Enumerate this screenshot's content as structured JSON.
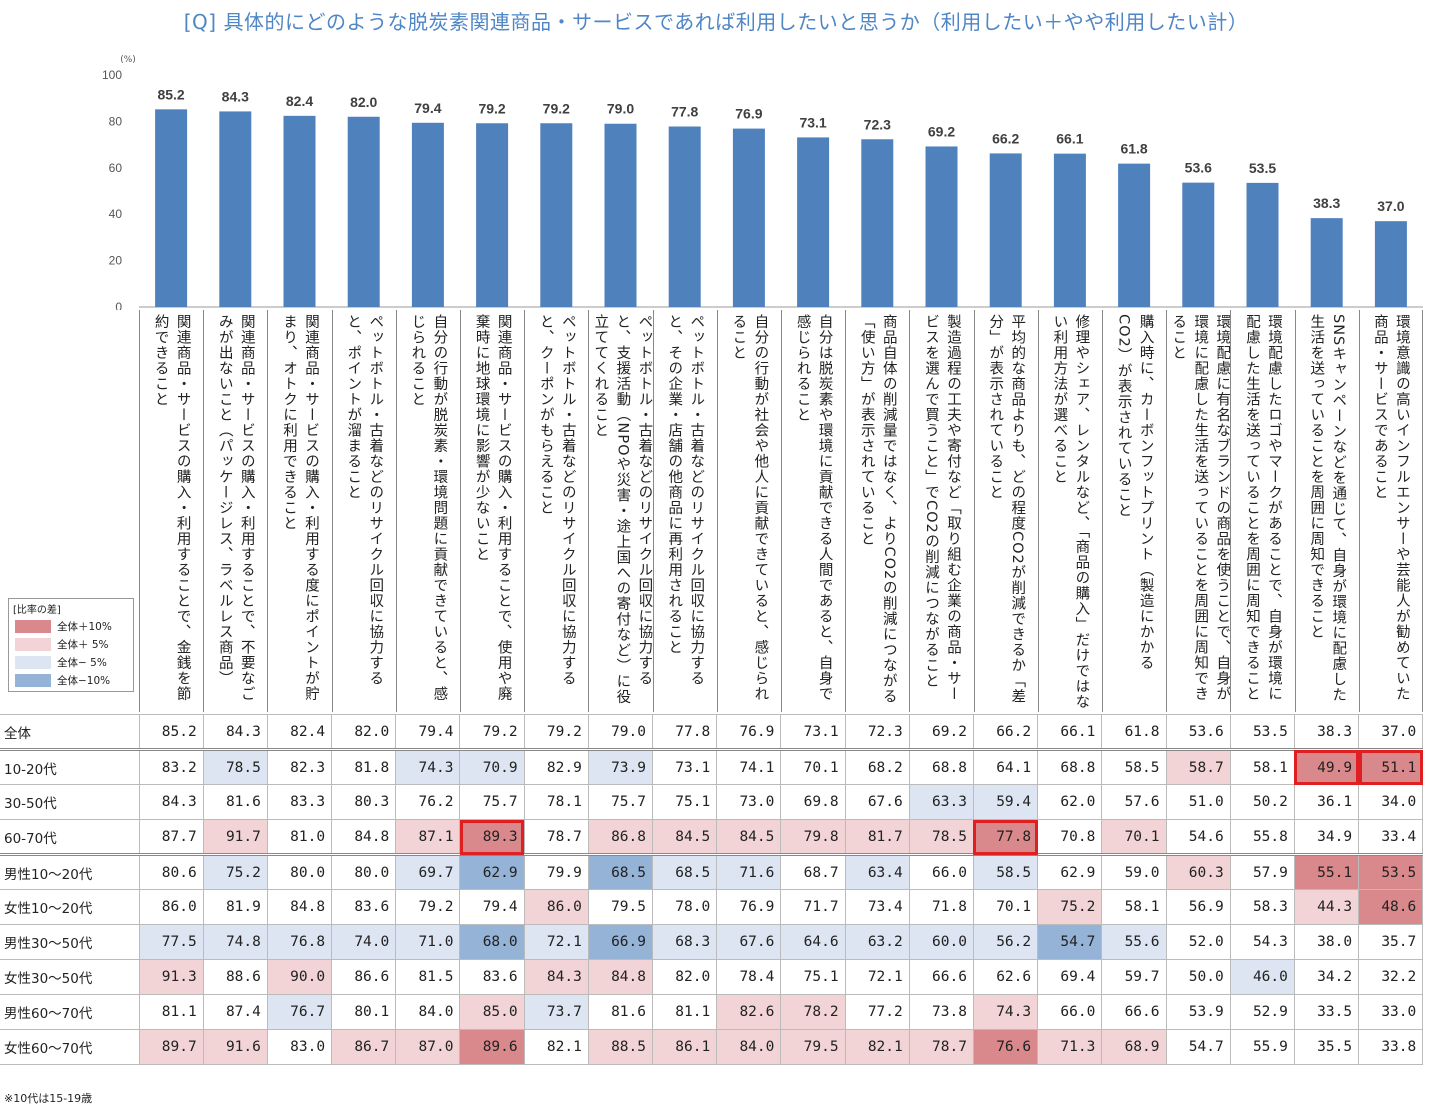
{
  "title": "[Q] 具体的にどのような脱炭素関連商品・サービスであれば利用したいと思うか（利用したい＋やや利用したい計）",
  "unit": "(%)",
  "footnote": "※10代は15-19歳",
  "legend": {
    "title": "[比率の差]",
    "items": [
      {
        "label": "全体＋10%",
        "color": "#d9888b"
      },
      {
        "label": "全体＋ 5%",
        "color": "#f2d4d6"
      },
      {
        "label": "全体− 5%",
        "color": "#dce5f1"
      },
      {
        "label": "全体−10%",
        "color": "#95b3d7"
      }
    ]
  },
  "colors": {
    "bar": "#4f81bd",
    "plus10": "#d9888b",
    "plus5": "#f2d4d6",
    "minus5": "#dce5f1",
    "minus10": "#95b3d7",
    "highlight": "#e02020"
  },
  "chart_data": {
    "type": "bar",
    "title": "[Q] 具体的にどのような脱炭素関連商品・サービスであれば利用したいと思うか（利用したい＋やや利用したい計）",
    "ylabel": "(%)",
    "ylim": [
      0,
      100
    ],
    "yticks": [
      "0",
      "20",
      "40",
      "60",
      "80",
      "100"
    ],
    "categories": [
      "関連商品・サービスの購入・利用することで、金銭を節約できること",
      "関連商品・サービスの購入・利用することで、不要なごみが出ないこと（パッケージレス、ラベルレス商品）",
      "関連商品・サービスの購入・利用する度にポイントが貯まり、オトクに利用できること",
      "ペットボトル・古着などのリサイクル回収に協力すると、ポイントが溜まること",
      "自分の行動が脱炭素・環境問題に貢献できていると、感じられること",
      "関連商品・サービスの購入・利用することで、使用や廃棄時に地球環境に影響が少ないこと",
      "ペットボトル・古着などのリサイクル回収に協力すると、クーポンがもらえること",
      "ペットボトル・古着などのリサイクル回収に協力すると、支援活動（NPOや災害・途上国への寄付など）に役立ててくれること",
      "ペットボトル・古着などのリサイクル回収に協力すると、その企業・店舗の他商品に再利用されること",
      "自分の行動が社会や他人に貢献できていると、感じられること",
      "自分は脱炭素や環境に貢献できる人間であると、自身で感じられること",
      "商品自体の削減量ではなく、よりCO2の削減につながる「使い方」が表示されていること",
      "製造過程の工夫や寄付など「取り組む企業の商品・サービスを選んで買うこと」でCO2の削減につながること",
      "平均的な商品よりも、どの程度CO2が削減できるか「差分」が表示されていること",
      "修理やシェア、レンタルなど、「商品の購入」だけではない利用方法が選べること",
      "購入時に、カーボンフットプリント（製造にかかるCO2）が表示されていること",
      "環境配慮に有名なブランドの商品を使うことで、自身が環境に配慮した生活を送っていることを周囲に周知できること",
      "環境配慮したロゴやマークがあることで、自身が環境に配慮した生活を送っていることを周囲に周知できること",
      "SNSキャンペーンなどを通じて、自身が環境に配慮した生活を送っていることを周囲に周知できること",
      "環境意識の高いインフルエンサーや芸能人が勧めていた商品・サービスであること"
    ],
    "values": [
      85.2,
      84.3,
      82.4,
      82.0,
      79.4,
      79.2,
      79.2,
      79.0,
      77.8,
      76.9,
      73.1,
      72.3,
      69.2,
      66.2,
      66.1,
      61.8,
      53.6,
      53.5,
      38.3,
      37.0
    ],
    "value_labels": [
      "85.2",
      "84.3",
      "82.4",
      "82.0",
      "79.4",
      "79.2",
      "79.2",
      "79.0",
      "77.8",
      "76.9",
      "73.1",
      "72.3",
      "69.2",
      "66.2",
      "66.1",
      "61.8",
      "53.6",
      "53.5",
      "38.3",
      "37.0"
    ]
  },
  "table": {
    "rows": [
      {
        "label": "全体",
        "values": [
          "85.2",
          "84.3",
          "82.4",
          "82.0",
          "79.4",
          "79.2",
          "79.2",
          "79.0",
          "77.8",
          "76.9",
          "73.1",
          "72.3",
          "69.2",
          "66.2",
          "66.1",
          "61.8",
          "53.6",
          "53.5",
          "38.3",
          "37.0"
        ],
        "shade": [
          0,
          0,
          0,
          0,
          0,
          0,
          0,
          0,
          0,
          0,
          0,
          0,
          0,
          0,
          0,
          0,
          0,
          0,
          0,
          0
        ],
        "highlight": [],
        "sep": true
      },
      {
        "label": "10-20代",
        "values": [
          "83.2",
          "78.5",
          "82.3",
          "81.8",
          "74.3",
          "70.9",
          "82.9",
          "73.9",
          "73.1",
          "74.1",
          "70.1",
          "68.2",
          "68.8",
          "64.1",
          "68.8",
          "58.5",
          "58.7",
          "58.1",
          "49.9",
          "51.1"
        ],
        "shade": [
          0,
          -1,
          0,
          0,
          -1,
          -1,
          0,
          -1,
          0,
          0,
          0,
          0,
          0,
          0,
          0,
          0,
          1,
          0,
          2,
          2
        ],
        "highlight": [
          18,
          19
        ],
        "sep": false
      },
      {
        "label": "30-50代",
        "values": [
          "84.3",
          "81.6",
          "83.3",
          "80.3",
          "76.2",
          "75.7",
          "78.1",
          "75.7",
          "75.1",
          "73.0",
          "69.8",
          "67.6",
          "63.3",
          "59.4",
          "62.0",
          "57.6",
          "51.0",
          "50.2",
          "36.1",
          "34.0"
        ],
        "shade": [
          0,
          0,
          0,
          0,
          0,
          0,
          0,
          0,
          0,
          0,
          0,
          0,
          -1,
          -1,
          0,
          0,
          0,
          0,
          0,
          0
        ],
        "highlight": [],
        "sep": false
      },
      {
        "label": "60-70代",
        "values": [
          "87.7",
          "91.7",
          "81.0",
          "84.8",
          "87.1",
          "89.3",
          "78.7",
          "86.8",
          "84.5",
          "84.5",
          "79.8",
          "81.7",
          "78.5",
          "77.8",
          "70.8",
          "70.1",
          "54.6",
          "55.8",
          "34.9",
          "33.4"
        ],
        "shade": [
          0,
          1,
          0,
          0,
          1,
          2,
          0,
          1,
          1,
          1,
          1,
          1,
          1,
          2,
          0,
          1,
          0,
          0,
          0,
          0
        ],
        "highlight": [
          5,
          13
        ],
        "sep": true
      },
      {
        "label": "男性10～20代",
        "values": [
          "80.6",
          "75.2",
          "80.0",
          "80.0",
          "69.7",
          "62.9",
          "79.9",
          "68.5",
          "68.5",
          "71.6",
          "68.7",
          "63.4",
          "66.0",
          "58.5",
          "62.9",
          "59.0",
          "60.3",
          "57.9",
          "55.1",
          "53.5"
        ],
        "shade": [
          0,
          -1,
          0,
          0,
          -1,
          -2,
          0,
          -2,
          -1,
          -1,
          0,
          -1,
          0,
          -1,
          0,
          0,
          1,
          0,
          2,
          2
        ],
        "highlight": [],
        "sep": false
      },
      {
        "label": "女性10～20代",
        "values": [
          "86.0",
          "81.9",
          "84.8",
          "83.6",
          "79.2",
          "79.4",
          "86.0",
          "79.5",
          "78.0",
          "76.9",
          "71.7",
          "73.4",
          "71.8",
          "70.1",
          "75.2",
          "58.1",
          "56.9",
          "58.3",
          "44.3",
          "48.6"
        ],
        "shade": [
          0,
          0,
          0,
          0,
          0,
          0,
          1,
          0,
          0,
          0,
          0,
          0,
          0,
          0,
          1,
          0,
          0,
          0,
          1,
          2
        ],
        "highlight": [],
        "sep": false
      },
      {
        "label": "男性30～50代",
        "values": [
          "77.5",
          "74.8",
          "76.8",
          "74.0",
          "71.0",
          "68.0",
          "72.1",
          "66.9",
          "68.3",
          "67.6",
          "64.6",
          "63.2",
          "60.0",
          "56.2",
          "54.7",
          "55.6",
          "52.0",
          "54.3",
          "38.0",
          "35.7"
        ],
        "shade": [
          -1,
          -1,
          -1,
          -1,
          -1,
          -2,
          -1,
          -2,
          -1,
          -1,
          -1,
          -1,
          -1,
          -1,
          -2,
          -1,
          0,
          0,
          0,
          0
        ],
        "highlight": [],
        "sep": false
      },
      {
        "label": "女性30～50代",
        "values": [
          "91.3",
          "88.6",
          "90.0",
          "86.6",
          "81.5",
          "83.6",
          "84.3",
          "84.8",
          "82.0",
          "78.4",
          "75.1",
          "72.1",
          "66.6",
          "62.6",
          "69.4",
          "59.7",
          "50.0",
          "46.0",
          "34.2",
          "32.2"
        ],
        "shade": [
          1,
          0,
          1,
          0,
          0,
          0,
          1,
          1,
          0,
          0,
          0,
          0,
          0,
          0,
          0,
          0,
          0,
          -1,
          0,
          0
        ],
        "highlight": [],
        "sep": false
      },
      {
        "label": "男性60～70代",
        "values": [
          "81.1",
          "87.4",
          "76.7",
          "80.1",
          "84.0",
          "85.0",
          "73.7",
          "81.6",
          "81.1",
          "82.6",
          "78.2",
          "77.2",
          "73.8",
          "74.3",
          "66.0",
          "66.6",
          "53.9",
          "52.9",
          "33.5",
          "33.0"
        ],
        "shade": [
          0,
          0,
          -1,
          0,
          0,
          1,
          -1,
          0,
          0,
          1,
          1,
          0,
          0,
          1,
          0,
          0,
          0,
          0,
          0,
          0
        ],
        "highlight": [],
        "sep": false
      },
      {
        "label": "女性60～70代",
        "values": [
          "89.7",
          "91.6",
          "83.0",
          "86.7",
          "87.0",
          "89.6",
          "82.1",
          "88.5",
          "86.1",
          "84.0",
          "79.5",
          "82.1",
          "78.7",
          "76.6",
          "71.3",
          "68.9",
          "54.7",
          "55.9",
          "35.5",
          "33.8"
        ],
        "shade": [
          1,
          1,
          0,
          1,
          1,
          2,
          0,
          1,
          1,
          1,
          1,
          1,
          1,
          2,
          1,
          1,
          0,
          0,
          0,
          0
        ],
        "highlight": [],
        "sep": false
      }
    ]
  }
}
